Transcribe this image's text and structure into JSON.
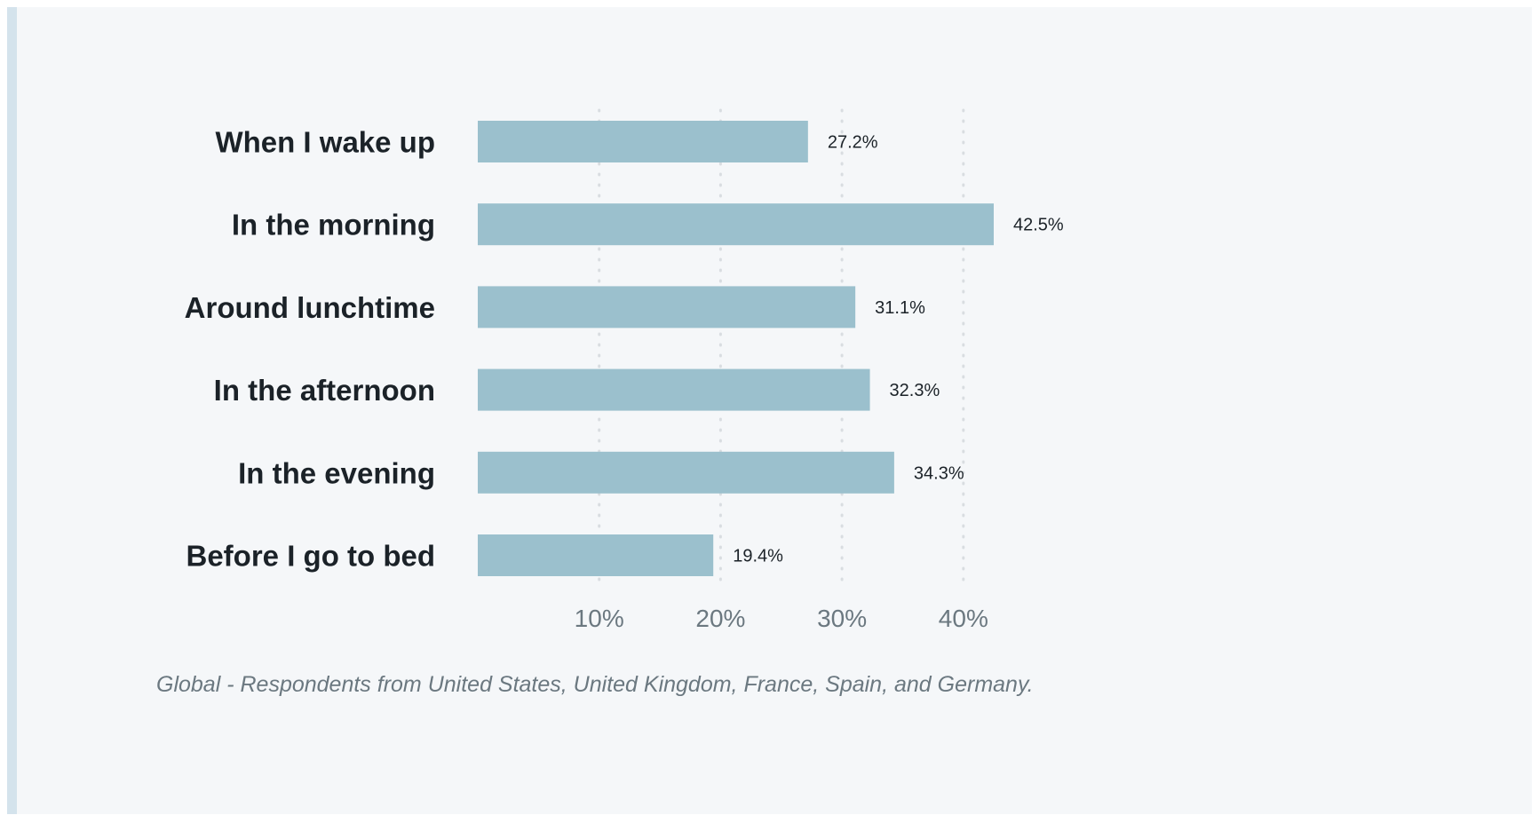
{
  "chart_data": {
    "type": "bar",
    "orientation": "horizontal",
    "categories": [
      "When I wake up",
      "In the morning",
      "Around lunchtime",
      "In the afternoon",
      "In the evening",
      "Before I go to bed"
    ],
    "values": [
      27.2,
      42.5,
      31.1,
      32.3,
      34.3,
      19.4
    ],
    "value_labels": [
      "27.2%",
      "42.5%",
      "31.1%",
      "32.3%",
      "34.3%",
      "19.4%"
    ],
    "xlim": [
      0,
      42.5
    ],
    "ticks": [
      10,
      20,
      30,
      40
    ],
    "tick_labels": [
      "10%",
      "20%",
      "30%",
      "40%"
    ],
    "grid": "dotted vertical",
    "bar_color": "#9bc0cd",
    "title": "",
    "xlabel": "",
    "ylabel": ""
  },
  "footnote": "Global - Respondents from United States, United Kingdom, France, Spain, and Germany."
}
